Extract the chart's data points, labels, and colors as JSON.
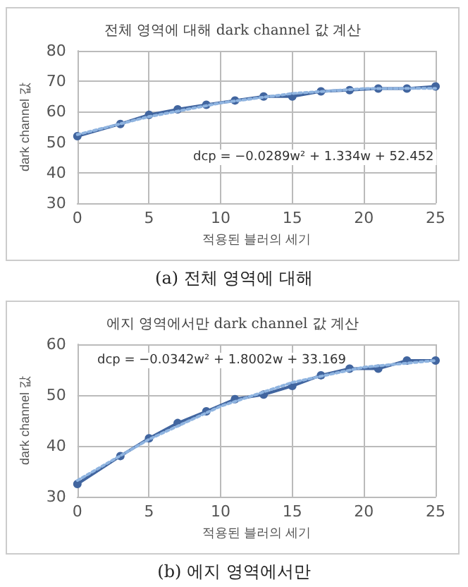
{
  "chart_data": [
    {
      "type": "line",
      "title": "전체 영역에 대해 dark channel 값 계산",
      "xlabel": "적용된 블러의 세기",
      "ylabel": "dark channel 값",
      "annotations": [
        "dcp = −0.0289w² + 1.334w + 52.452",
        "(a) 전체 영역에 대해"
      ],
      "x": [
        0,
        3,
        5,
        7,
        9,
        11,
        13,
        15,
        17,
        19,
        21,
        23,
        25
      ],
      "series": [
        {
          "type": "line",
          "color": "#41659f",
          "marker": "circle",
          "line_style": "solid",
          "values": [
            52,
            56,
            59,
            60.8,
            62.3,
            63.7,
            65,
            65,
            66.7,
            67.1,
            67.6,
            67.6,
            68.3
          ]
        },
        {
          "type": "line",
          "color": "#8fb4e0",
          "marker": "none",
          "line_style": "dotted",
          "x": [
            0,
            5,
            10,
            15,
            20,
            25
          ],
          "values": [
            52.5,
            58.4,
            62.9,
            66,
            67.6,
            67.7
          ]
        }
      ],
      "xlim": [
        0,
        25
      ],
      "xticks": [
        0,
        5,
        10,
        15,
        20,
        25
      ],
      "ylim": [
        30,
        80
      ],
      "yticks": [
        30,
        40,
        50,
        60,
        70,
        80
      ],
      "grid": true
    },
    {
      "type": "line",
      "title": "에지 영역에서만 dark channel 값 계산",
      "xlabel": "적용된 블러의 세기",
      "ylabel": "dark channel 값",
      "annotations": [
        "dcp = −0.0342w² + 1.8002w + 33.169",
        "(b) 에지 영역에서만"
      ],
      "x": [
        0,
        3,
        5,
        7,
        9,
        11,
        13,
        15,
        17,
        19,
        21,
        23,
        25
      ],
      "series": [
        {
          "type": "line",
          "color": "#41659f",
          "marker": "circle",
          "line_style": "solid",
          "values": [
            32.5,
            38,
            41.5,
            44.5,
            46.8,
            49.2,
            50.1,
            51.8,
            53.9,
            55.2,
            55.2,
            56.8,
            56.8
          ]
        },
        {
          "type": "line",
          "color": "#8fb4e0",
          "marker": "none",
          "line_style": "dotted",
          "x": [
            0,
            5,
            10,
            15,
            20,
            25
          ],
          "values": [
            33.2,
            41.3,
            47.8,
            52.5,
            55.5,
            56.8
          ]
        }
      ],
      "xlim": [
        0,
        25
      ],
      "xticks": [
        0,
        5,
        10,
        15,
        20,
        25
      ],
      "ylim": [
        30,
        60
      ],
      "yticks": [
        30,
        40,
        50,
        60
      ],
      "grid": true
    }
  ]
}
